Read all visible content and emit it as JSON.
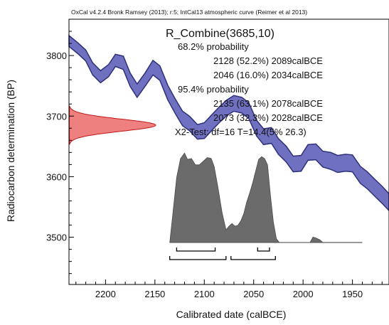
{
  "header": "OxCal v4.2.4 Bronk Ramsey (2013); r:5; IntCal13 atmospheric curve (Reimer et al 2013)",
  "title": "R_Combine(3685,10)",
  "annotations": [
    "68.2% probability",
    "2128 (52.2%) 2089calBCE",
    "2046 (16.0%) 2034calBCE",
    "95.4% probability",
    "2135 (63.1%) 2078calBCE",
    "2073 (32.3%) 2028calBCE",
    "X2-Test: df=16 T=14.4(5% 26.3)"
  ],
  "colors": {
    "curve_fill": "#6f71c0",
    "curve_edge": "#2e2f7a",
    "date_fill": "#ef8080",
    "date_edge": "#c01818",
    "posterior_fill": "#6b6b6b",
    "axis": "#000000"
  },
  "chart_data": {
    "type": "area",
    "title": "R_Combine(3685,10)",
    "xlabel": "Calibrated date (calBCE)",
    "ylabel": "Radiocarbon determination (BP)",
    "x_ticks": [
      2200,
      2150,
      2100,
      2050,
      2000,
      1950
    ],
    "y_ticks": [
      3500,
      3600,
      3700,
      3800
    ],
    "xlim": [
      2237,
      1913
    ],
    "ylim": [
      3422,
      3860
    ],
    "calibration_curve": {
      "x": [
        2237,
        2228,
        2220,
        2213,
        2205,
        2197,
        2190,
        2182,
        2175,
        2168,
        2160,
        2152,
        2145,
        2137,
        2130,
        2122,
        2115,
        2107,
        2100,
        2092,
        2085,
        2077,
        2070,
        2062,
        2055,
        2047,
        2040,
        2032,
        2025,
        2017,
        2010,
        2002,
        1995,
        1987,
        1980,
        1972,
        1965,
        1957,
        1950,
        1942,
        1935,
        1927,
        1920,
        1913
      ],
      "bp": [
        3824,
        3812,
        3800,
        3778,
        3765,
        3775,
        3792,
        3788,
        3760,
        3742,
        3760,
        3780,
        3771,
        3739,
        3718,
        3696,
        3688,
        3674,
        3676,
        3690,
        3702,
        3714,
        3721,
        3718,
        3709,
        3680,
        3666,
        3668,
        3650,
        3637,
        3621,
        3622,
        3640,
        3641,
        3629,
        3626,
        3621,
        3623,
        3622,
        3603,
        3594,
        3581,
        3570,
        3558
      ],
      "sigma": [
        9,
        9,
        9,
        10,
        10,
        10,
        10,
        11,
        11,
        11,
        11,
        12,
        12,
        12,
        12,
        12,
        12,
        12,
        13,
        13,
        13,
        13,
        13,
        13,
        13,
        13,
        13,
        13,
        13,
        13,
        13,
        13,
        13,
        13,
        13,
        14,
        14,
        14,
        14,
        14,
        14,
        14,
        14,
        14
      ]
    },
    "radiocarbon_date": {
      "mean_bp": 3685,
      "sigma_bp": 10
    },
    "posterior": {
      "x": [
        2135,
        2132,
        2128,
        2124,
        2120,
        2117,
        2113,
        2109,
        2105,
        2101,
        2097,
        2093,
        2090,
        2086,
        2082,
        2078,
        2075,
        2072,
        2069,
        2066,
        2063,
        2060,
        2057,
        2054,
        2051,
        2048,
        2045,
        2042,
        2039,
        2036,
        2033,
        2030,
        2027,
        2024,
        1993,
        1990,
        1987,
        1983,
        1980
      ],
      "density": [
        0,
        0.3,
        0.72,
        0.93,
        0.99,
        0.92,
        0.93,
        0.86,
        0.86,
        0.9,
        0.94,
        0.93,
        0.84,
        0.6,
        0.33,
        0.14,
        0.18,
        0.21,
        0.18,
        0.19,
        0.24,
        0.32,
        0.45,
        0.55,
        0.66,
        0.79,
        0.92,
        0.95,
        0.93,
        0.86,
        0.52,
        0.22,
        0.04,
        0,
        0,
        0.06,
        0.05,
        0.03,
        0
      ],
      "baseline_from": 2135,
      "baseline_to": 1940
    },
    "ranges_68": [
      [
        2128,
        2089
      ],
      [
        2046,
        2034
      ]
    ],
    "ranges_95": [
      [
        2135,
        2078
      ],
      [
        2073,
        2028
      ]
    ]
  }
}
